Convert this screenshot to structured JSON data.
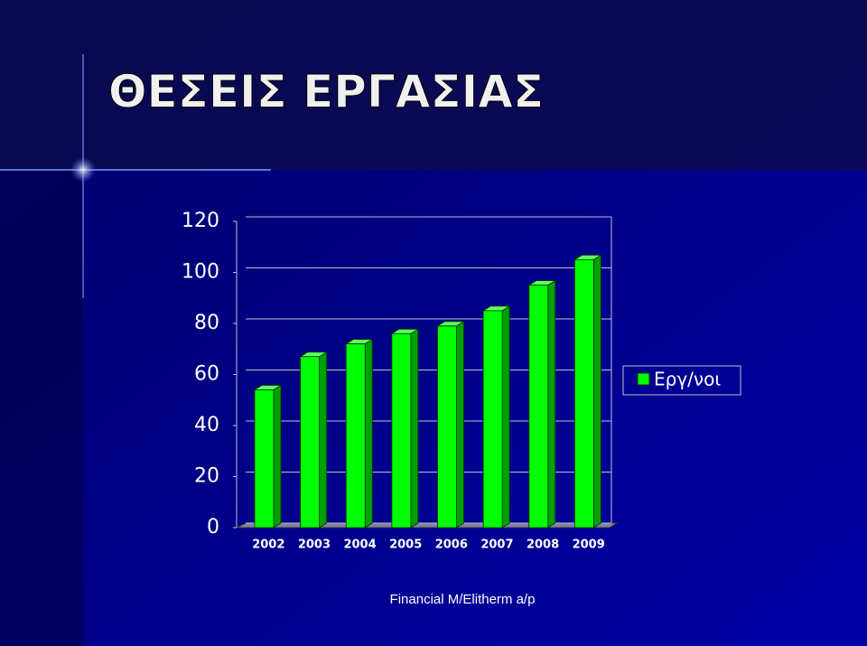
{
  "chart_data": {
    "type": "bar3d",
    "title": "ΘΕΣΕΙΣ ΕΡΓΑΣΙΑΣ",
    "categories": [
      "2002",
      "2003",
      "2004",
      "2005",
      "2006",
      "2007",
      "2008",
      "2009"
    ],
    "series": [
      {
        "name": "Εργ/νοι",
        "color": "#00ff00",
        "values": [
          54,
          67,
          72,
          76,
          79,
          85,
          95,
          105
        ]
      }
    ],
    "ylim": [
      0,
      120
    ],
    "yticks": [
      0,
      20,
      40,
      60,
      80,
      100,
      120
    ],
    "grid": true,
    "legend": "right",
    "footer": "Financial M/Elitherm a/p"
  }
}
